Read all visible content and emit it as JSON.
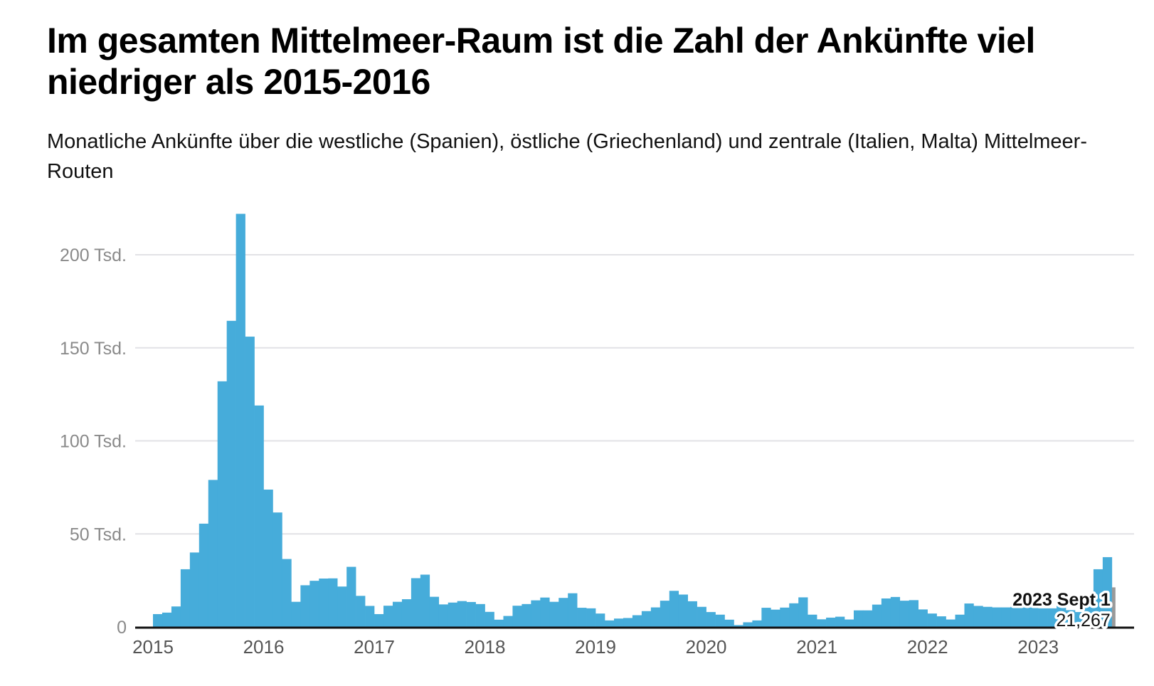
{
  "title": "Im gesamten Mittelmeer-Raum ist die Zahl der Ankünfte viel niedriger als 2015-2016",
  "subtitle": "Monatliche Ankünfte über die westliche (Spanien), östliche (Griechenland) und zentrale (Italien, Malta) Mittelmeer-Routen",
  "chart_data": {
    "type": "bar",
    "title": "Im gesamten Mittelmeer-Raum ist die Zahl der Ankünfte viel niedriger als 2015-2016",
    "subtitle": "Monatliche Ankünfte über die westliche (Spanien), östliche (Griechenland) und zentrale (Italien, Malta) Mittelmeer-Routen",
    "x_start": "2015-01",
    "x_end": "2023-09",
    "x_unit": "month",
    "xlabel": "",
    "ylabel": "",
    "ylim": [
      0,
      225000
    ],
    "y_ticks": [
      0,
      50000,
      100000,
      150000,
      200000
    ],
    "y_tick_labels": [
      "0",
      "50 Tsd.",
      "100 Tsd.",
      "150 Tsd.",
      "200 Tsd."
    ],
    "x_ticks": [
      "2015",
      "2016",
      "2017",
      "2018",
      "2019",
      "2020",
      "2021",
      "2022",
      "2023"
    ],
    "grid": true,
    "bar_color": "#42aad9",
    "highlight_color": "#9a9a9a",
    "values": [
      6900,
      7700,
      11000,
      31000,
      40000,
      55500,
      79000,
      132000,
      164500,
      222000,
      156000,
      119000,
      73800,
      61500,
      36500,
      13500,
      22400,
      24800,
      26000,
      26100,
      21700,
      32300,
      16700,
      11300,
      6900,
      11400,
      13500,
      14900,
      26200,
      28100,
      16200,
      12100,
      13100,
      13900,
      13400,
      12300,
      8100,
      3900,
      5900,
      11400,
      12300,
      14300,
      15800,
      13500,
      15600,
      18100,
      10300,
      10000,
      7200,
      3500,
      4500,
      4800,
      6300,
      8500,
      10500,
      14100,
      19400,
      17400,
      13800,
      10800,
      8000,
      6600,
      3900,
      1000,
      2500,
      3500,
      10300,
      9300,
      10400,
      12700,
      15900,
      6600,
      4100,
      5000,
      5500,
      4000,
      8900,
      8900,
      12000,
      15300,
      16100,
      14100,
      14400,
      9400,
      7200,
      5700,
      4000,
      6600,
      12600,
      11300,
      10800,
      10500,
      10500,
      10800,
      10500,
      10500,
      10000,
      10000,
      12500,
      9000,
      8000,
      12000,
      31000,
      37500,
      21267
    ],
    "annotation": {
      "month": "2023-09",
      "label": "2023 Sept 1",
      "value_label": "21,267",
      "value": 21267
    }
  }
}
